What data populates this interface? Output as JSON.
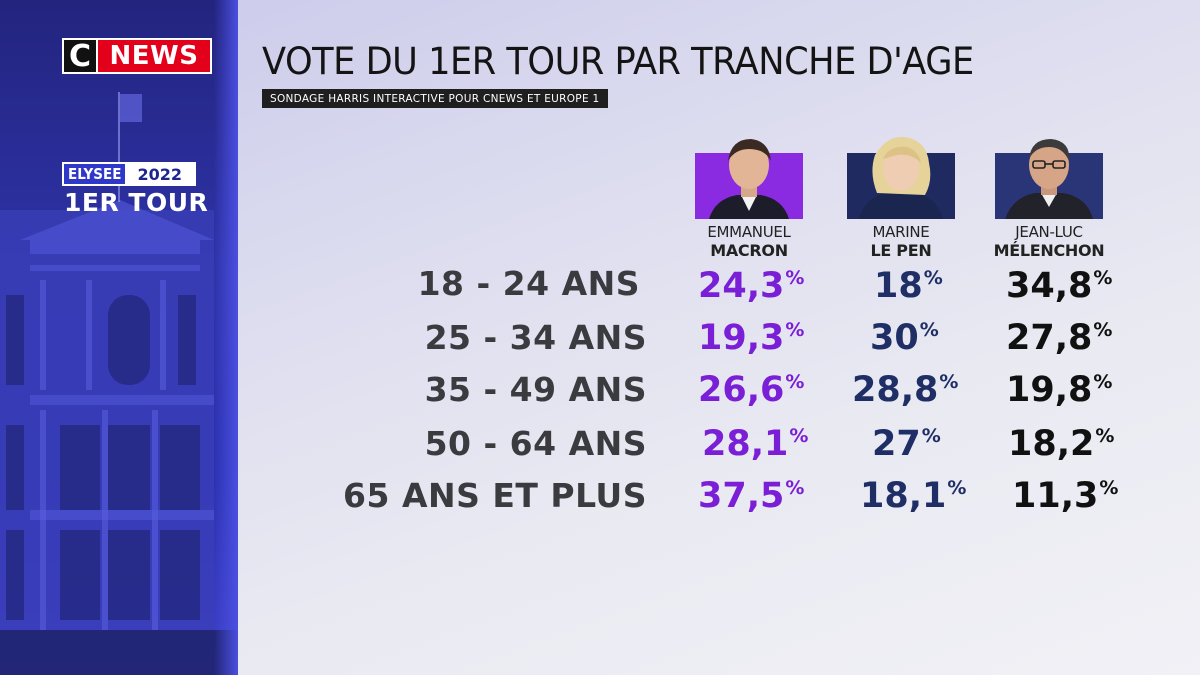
{
  "side_panel": {
    "brand_c": "C",
    "brand_news": "NEWS",
    "badge_word": "ELYSEE",
    "badge_year": "2022",
    "tour": "1ER TOUR"
  },
  "header": {
    "title": "VOTE DU 1ER TOUR PAR TRANCHE D'AGE",
    "subtitle": "SONDAGE HARRIS INTERACTIVE POUR CNEWS ET EUROPE 1"
  },
  "candidates": [
    {
      "first": "EMMANUEL",
      "last": "MACRON",
      "color": "#7a1fd6",
      "bg": "#8a2be2"
    },
    {
      "first": "MARINE",
      "last": "LE PEN",
      "color": "#1f2f66",
      "bg": "#1e2a60"
    },
    {
      "first": "JEAN-LUC",
      "last": "MÉLENCHON",
      "color": "#111111",
      "bg": "#2a3578"
    }
  ],
  "percent_sign": "%",
  "rows": [
    {
      "age": "18 - 24 ANS",
      "values": [
        "24,3",
        "18",
        "34,8"
      ]
    },
    {
      "age": "25 - 34 ANS",
      "values": [
        "19,3",
        "30",
        "27,8"
      ]
    },
    {
      "age": "35 - 49 ANS",
      "values": [
        "26,6",
        "28,8",
        "19,8"
      ]
    },
    {
      "age": "50 - 64 ANS",
      "values": [
        "28,1",
        "27",
        "18,2"
      ]
    },
    {
      "age": "65 ANS ET PLUS",
      "values": [
        "37,5",
        "18,1",
        "11,3"
      ]
    }
  ]
}
